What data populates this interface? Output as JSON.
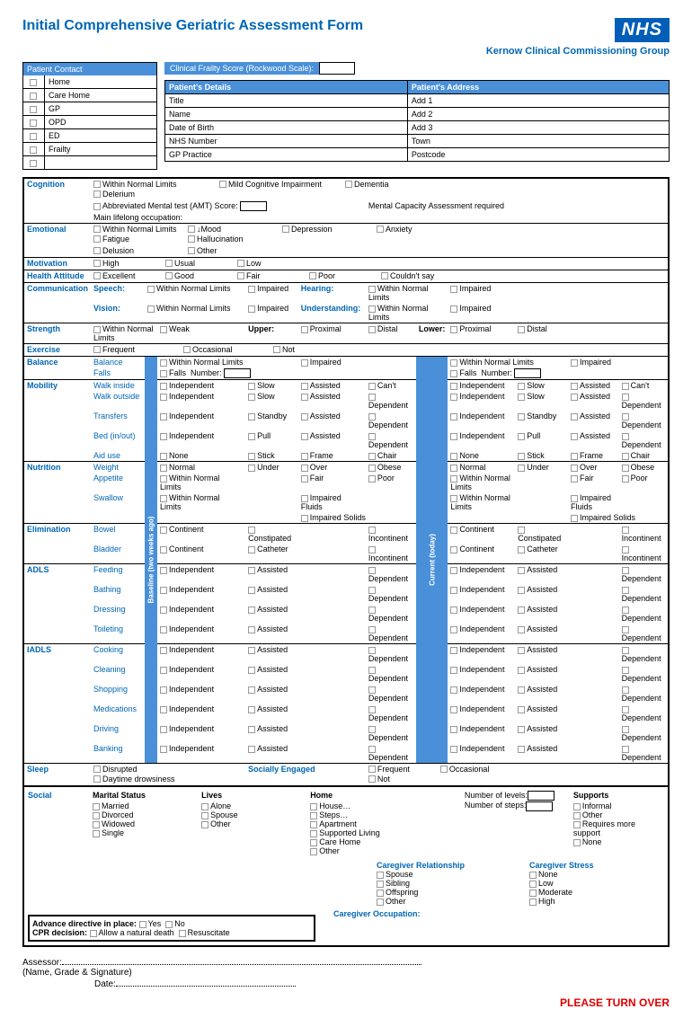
{
  "title": "Initial Comprehensive Geriatric Assessment Form",
  "nhs": "NHS",
  "subtitle": "Kernow Clinical Commissioning Group",
  "patientContact": {
    "header": "Patient Contact",
    "items": [
      "Home",
      "Care Home",
      "GP",
      "OPD",
      "ED",
      "Frailty",
      ""
    ]
  },
  "frailty": {
    "label": "Clinical Frailty Score (Rockwood Scale):"
  },
  "details": {
    "h1": "Patient's Details",
    "h2": "Patient's Address",
    "rows": [
      [
        "Title",
        "Add 1"
      ],
      [
        "Name",
        "Add 2"
      ],
      [
        "Date of Birth",
        "Add 3"
      ],
      [
        "NHS Number",
        "Town"
      ],
      [
        "GP Practice",
        "Postcode"
      ]
    ]
  },
  "cognition": {
    "label": "Cognition",
    "opts": [
      "Within Normal Limits",
      "Mild Cognitive Impairment",
      "Dementia",
      "Delerium"
    ],
    "amt": "Abbreviated Mental test (AMT) Score:",
    "mca": "Mental Capacity Assessment required",
    "occ": "Main lifelong occupation:"
  },
  "emotional": {
    "label": "Emotional",
    "opts": [
      "Within Normal Limits",
      "↓Mood",
      "Depression",
      "Anxiety",
      "Fatigue",
      "Hallucination"
    ],
    "opts2": [
      "Delusion",
      "Other"
    ]
  },
  "motivation": {
    "label": "Motivation",
    "opts": [
      "High",
      "Usual",
      "Low"
    ]
  },
  "health": {
    "label": "Health Attitude",
    "opts": [
      "Excellent",
      "Good",
      "Fair",
      "Poor",
      "Couldn't say"
    ]
  },
  "comm": {
    "label": "Communication",
    "speech": "Speech:",
    "vision": "Vision:",
    "hearing": "Hearing:",
    "under": "Understanding:",
    "wnl": "Within Normal Limits",
    "imp": "Impaired"
  },
  "strength": {
    "label": "Strength",
    "opts": [
      "Within Normal Limits",
      "Weak"
    ],
    "upper": "Upper:",
    "lower": "Lower:",
    "prox": "Proximal",
    "dist": "Distal"
  },
  "exercise": {
    "label": "Exercise",
    "opts": [
      "Frequent",
      "Occasional",
      "Not"
    ]
  },
  "balance": {
    "label": "Balance",
    "sub1": "Balance",
    "sub2": "Falls",
    "wnl": "Within Normal Limits",
    "imp": "Impaired",
    "falls": "Falls",
    "num": "Number:"
  },
  "mobility": {
    "label": "Mobility",
    "subs": [
      "Walk inside",
      "Walk outside",
      "Transfers",
      "Bed (in/out)",
      "Aid use"
    ],
    "r": [
      [
        "Independent",
        "Slow",
        "Assisted",
        "Can't"
      ],
      [
        "Independent",
        "Slow",
        "Assisted",
        "Dependent"
      ],
      [
        "Independent",
        "Standby",
        "Assisted",
        "Dependent"
      ],
      [
        "Independent",
        "Pull",
        "Assisted",
        "Dependent"
      ],
      [
        "None",
        "Stick",
        "Frame",
        "Chair"
      ]
    ]
  },
  "nutrition": {
    "label": "Nutrition",
    "subs": [
      "Weight",
      "Appetite",
      "Swallow"
    ],
    "r": [
      [
        "Normal",
        "Under",
        "Over",
        "Obese"
      ],
      [
        "Within Normal Limits",
        "",
        "Fair",
        "Poor"
      ],
      [
        "Within Normal Limits",
        "",
        "Impaired Fluids",
        ""
      ]
    ],
    "solids": "Impaired Solids"
  },
  "elim": {
    "label": "Elimination",
    "subs": [
      "Bowel",
      "Bladder"
    ],
    "r": [
      [
        "Continent",
        "Constipated",
        "",
        "Incontinent"
      ],
      [
        "Continent",
        "Catheter",
        "",
        "Incontinent"
      ]
    ]
  },
  "adls": {
    "label": "ADLS",
    "subs": [
      "Feeding",
      "Bathing",
      "Dressing",
      "Toileting"
    ],
    "r": [
      "Independent",
      "Assisted",
      "",
      "Dependent"
    ]
  },
  "iadls": {
    "label": "IADLS",
    "subs": [
      "Cooking",
      "Cleaning",
      "Shopping",
      "Medications",
      "Driving",
      "Banking"
    ],
    "r": [
      "Independent",
      "Assisted",
      "",
      "Dependent"
    ]
  },
  "sleep": {
    "label": "Sleep",
    "opts": [
      "Disrupted",
      "Daytime drowsiness"
    ],
    "se": "Socially Engaged",
    "opts2": [
      "Frequent",
      "Occasional",
      "Not"
    ]
  },
  "social": {
    "label": "Social",
    "marital": {
      "h": "Marital Status",
      "o": [
        "Married",
        "Divorced",
        "Widowed",
        "Single"
      ]
    },
    "lives": {
      "h": "Lives",
      "o": [
        "Alone",
        "Spouse",
        "Other"
      ]
    },
    "home": {
      "h": "Home",
      "o": [
        "House…",
        "Steps…",
        "Apartment",
        "Supported Living",
        "Care Home",
        "Other"
      ],
      "levels": "Number of levels:",
      "steps": "Number of steps:"
    },
    "supports": {
      "h": "Supports",
      "o": [
        "Informal",
        "Other",
        "Requires more support",
        "None"
      ]
    },
    "cg": {
      "h1": "Caregiver Relationship",
      "o1": [
        "Spouse",
        "Sibling",
        "Offspring",
        "Other"
      ],
      "h2": "Caregiver Stress",
      "o2": [
        "None",
        "Low",
        "Moderate",
        "High"
      ],
      "occ": "Caregiver Occupation:"
    }
  },
  "advance": {
    "l1": "Advance directive in place:",
    "yes": "Yes",
    "no": "No",
    "l2": "CPR decision:",
    "nat": "Allow a natural death",
    "res": "Resuscitate"
  },
  "assessor": {
    "l": "Assessor:",
    "sub": "(Name, Grade & Signature)",
    "date": "Date:"
  },
  "baseline": "Baseline (two weeks ago)",
  "current": "Current (today)",
  "turnover": "PLEASE TURN OVER"
}
